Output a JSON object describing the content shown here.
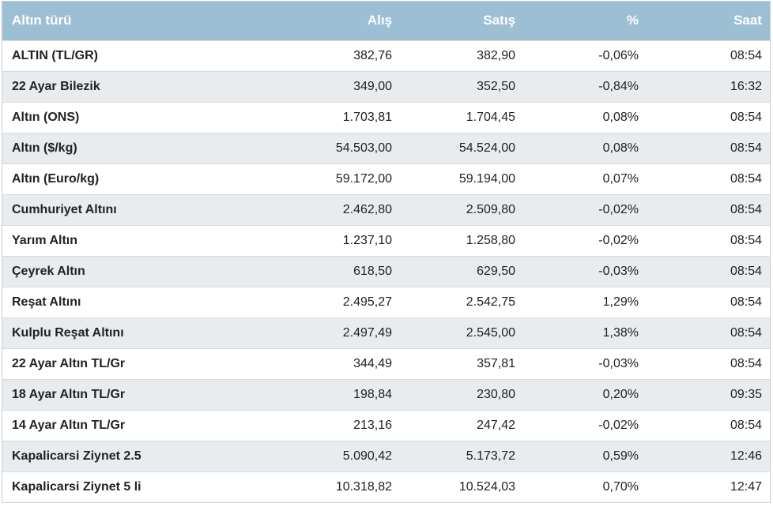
{
  "table": {
    "headers": [
      "Altın türü",
      "Alış",
      "Satış",
      "%",
      "Saat"
    ],
    "rows": [
      [
        "ALTIN (TL/GR)",
        "382,76",
        "382,90",
        "-0,06%",
        "08:54"
      ],
      [
        "22 Ayar Bilezik",
        "349,00",
        "352,50",
        "-0,84%",
        "16:32"
      ],
      [
        "Altın (ONS)",
        "1.703,81",
        "1.704,45",
        "0,08%",
        "08:54"
      ],
      [
        "Altın ($/kg)",
        "54.503,00",
        "54.524,00",
        "0,08%",
        "08:54"
      ],
      [
        "Altın (Euro/kg)",
        "59.172,00",
        "59.194,00",
        "0,07%",
        "08:54"
      ],
      [
        "Cumhuriyet Altını",
        "2.462,80",
        "2.509,80",
        "-0,02%",
        "08:54"
      ],
      [
        "Yarım Altın",
        "1.237,10",
        "1.258,80",
        "-0,02%",
        "08:54"
      ],
      [
        "Çeyrek Altın",
        "618,50",
        "629,50",
        "-0,03%",
        "08:54"
      ],
      [
        "Reşat Altını",
        "2.495,27",
        "2.542,75",
        "1,29%",
        "08:54"
      ],
      [
        "Kulplu Reşat Altını",
        "2.497,49",
        "2.545,00",
        "1,38%",
        "08:54"
      ],
      [
        "22 Ayar Altın TL/Gr",
        "344,49",
        "357,81",
        "-0,03%",
        "08:54"
      ],
      [
        "18 Ayar Altın TL/Gr",
        "198,84",
        "230,80",
        "0,20%",
        "09:35"
      ],
      [
        "14 Ayar Altın TL/Gr",
        "213,16",
        "247,42",
        "-0,02%",
        "08:54"
      ],
      [
        "Kapalicarsi Ziynet 2.5",
        "5.090,42",
        "5.173,72",
        "0,59%",
        "12:46"
      ],
      [
        "Kapalicarsi Ziynet 5 li",
        "10.318,82",
        "10.524,03",
        "0,70%",
        "12:47"
      ]
    ]
  },
  "colors": {
    "header_bg": "#9dbfd4",
    "header_text": "#ffffff",
    "row_alt_bg": "#e8ecef"
  }
}
